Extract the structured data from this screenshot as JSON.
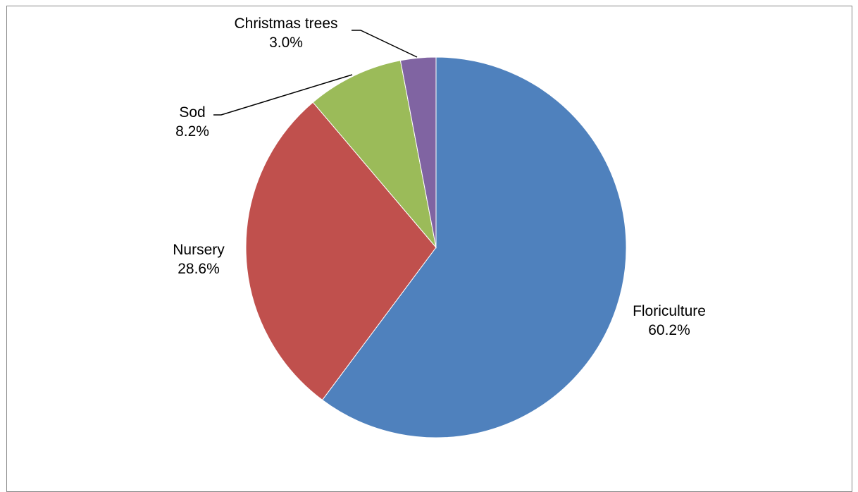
{
  "chart_data": {
    "type": "pie",
    "categories": [
      "Floriculture",
      "Nursery",
      "Sod",
      "Christmas trees"
    ],
    "values": [
      60.2,
      28.6,
      8.2,
      3.0
    ],
    "value_labels": [
      "60.2%",
      "28.6%",
      "8.2%",
      "3.0%"
    ],
    "colors": [
      "#4F81BD",
      "#C0504D",
      "#9BBB59",
      "#8064A2"
    ],
    "start_angle": "12 o'clock",
    "direction": "clockwise",
    "legend": "none",
    "title": ""
  }
}
